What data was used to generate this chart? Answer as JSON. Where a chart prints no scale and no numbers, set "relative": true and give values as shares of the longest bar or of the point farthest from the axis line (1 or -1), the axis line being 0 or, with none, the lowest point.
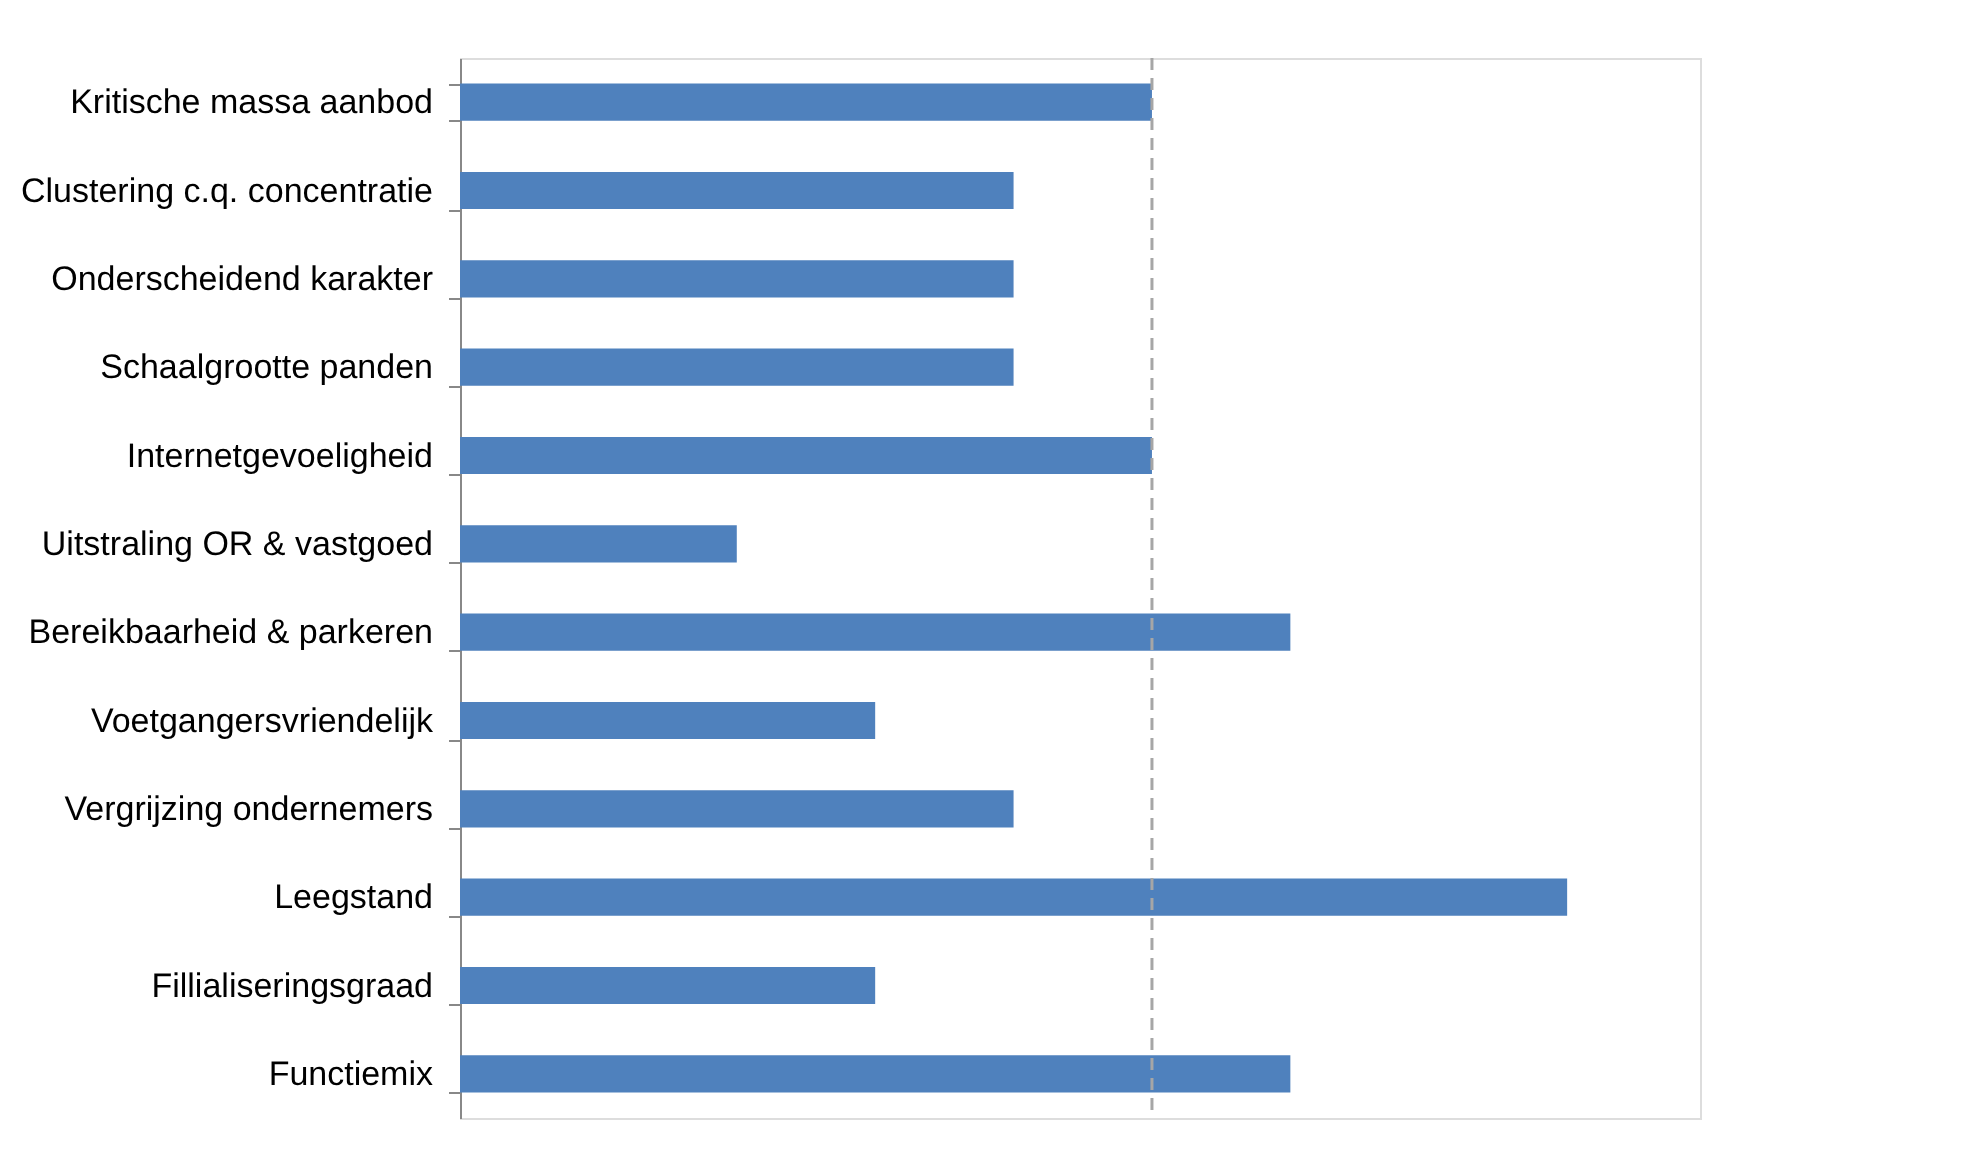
{
  "chart_data": {
    "type": "bar",
    "orientation": "horizontal",
    "relative": true,
    "categories": [
      "Kritische massa aanbod",
      "Clustering c.q. concentratie",
      "Onderscheidend karakter",
      "Schaalgrootte panden",
      "Internetgevoeligheid",
      "Uitstraling OR & vastgoed",
      "Bereikbaarheid & parkeren",
      "Voetgangersvriendelijk",
      "Vergrijzing ondernemers",
      "Leegstand",
      "Fillialiseringsgraad",
      "Functiemix"
    ],
    "values": [
      0.625,
      0.5,
      0.5,
      0.5,
      0.625,
      0.25,
      0.75,
      0.375,
      0.5,
      1,
      0.375,
      0.75
    ],
    "color": "#4f81bd",
    "ref_lines": [
      {
        "axis": "x",
        "value": 0.625,
        "color": "#a6a6a6",
        "line_style": "dashed"
      }
    ]
  }
}
